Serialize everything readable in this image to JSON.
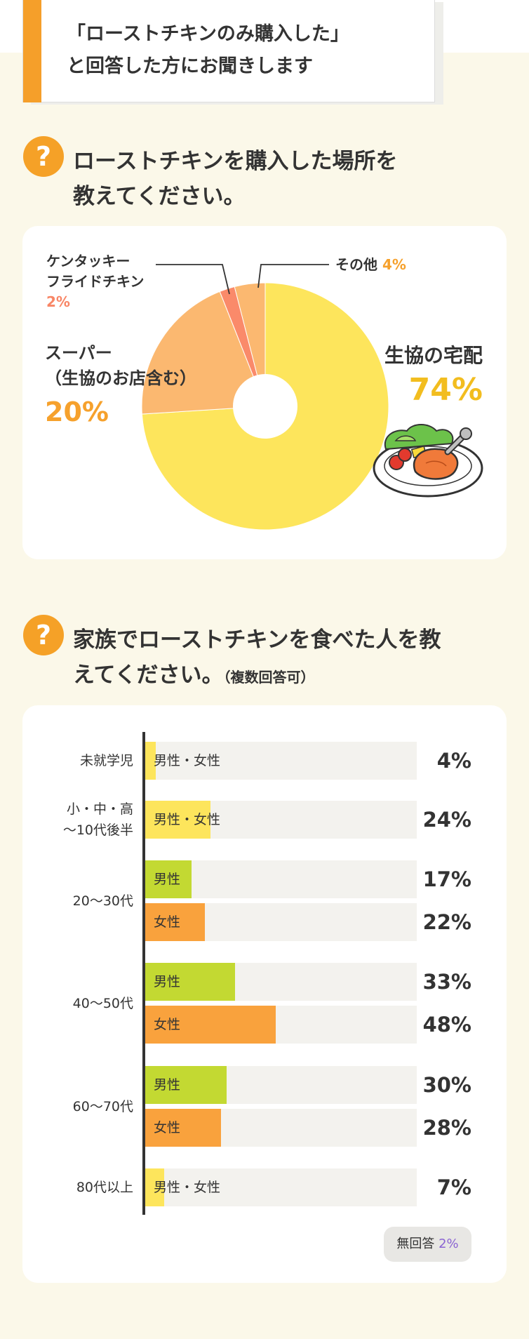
{
  "header": {
    "line1": "「ローストチキンのみ購入した」",
    "line2": "と回答した方にお聞きします"
  },
  "q_mark": "?",
  "q1": {
    "line1": "ローストチキンを購入した場所を",
    "line2": "教えてください。"
  },
  "q2": {
    "line1": "家族でローストチキンを食べた人を教",
    "line2": "えてください。",
    "note": "（複数回答可）"
  },
  "colors": {
    "yellow": "#fde55c",
    "orange": "#f9a23d",
    "light_orange": "#fbb870",
    "red": "#fa8a6a",
    "green": "#c3d932",
    "track": "#f3f2ee",
    "accent": "#f5a127"
  },
  "illustration": "roast-chicken-plate",
  "chart_data": [
    {
      "type": "pie",
      "slices": [
        {
          "label": "生協の宅配",
          "value": 74,
          "value_label": "74%",
          "color": "#fde55c"
        },
        {
          "label_lines": [
            "スーパー",
            "（生協のお店含む）"
          ],
          "value": 20,
          "value_label": "20%",
          "color": "#fbb870"
        },
        {
          "label_lines": [
            "ケンタッキー",
            "フライドチキン"
          ],
          "value": 2,
          "value_label": "2%",
          "color": "#fa8a6a"
        },
        {
          "label": "その他",
          "value": 4,
          "value_label": "4%",
          "color": "#fbb870"
        }
      ]
    },
    {
      "type": "bar",
      "orientation": "horizontal",
      "xlim": [
        0,
        100
      ],
      "groups": [
        {
          "label_lines": [
            "未就学児"
          ],
          "bars": [
            {
              "name": "男性・女性",
              "value": 4,
              "value_label": "4%",
              "color": "#fde55c"
            }
          ]
        },
        {
          "label_lines": [
            "小・中・高",
            "〜10代後半"
          ],
          "bars": [
            {
              "name": "男性・女性",
              "value": 24,
              "value_label": "24%",
              "color": "#fde55c"
            }
          ]
        },
        {
          "label_lines": [
            "20〜30代"
          ],
          "bars": [
            {
              "name": "男性",
              "value": 17,
              "value_label": "17%",
              "color": "#c3d932"
            },
            {
              "name": "女性",
              "value": 22,
              "value_label": "22%",
              "color": "#f9a23d"
            }
          ]
        },
        {
          "label_lines": [
            "40〜50代"
          ],
          "bars": [
            {
              "name": "男性",
              "value": 33,
              "value_label": "33%",
              "color": "#c3d932"
            },
            {
              "name": "女性",
              "value": 48,
              "value_label": "48%",
              "color": "#f9a23d"
            }
          ]
        },
        {
          "label_lines": [
            "60〜70代"
          ],
          "bars": [
            {
              "name": "男性",
              "value": 30,
              "value_label": "30%",
              "color": "#c3d932"
            },
            {
              "name": "女性",
              "value": 28,
              "value_label": "28%",
              "color": "#f9a23d"
            }
          ]
        },
        {
          "label_lines": [
            "80代以上"
          ],
          "bars": [
            {
              "name": "男性・女性",
              "value": 7,
              "value_label": "7%",
              "color": "#fde55c"
            }
          ]
        }
      ],
      "no_answer": {
        "label": "無回答",
        "value": 2,
        "value_label": "2%"
      }
    }
  ]
}
